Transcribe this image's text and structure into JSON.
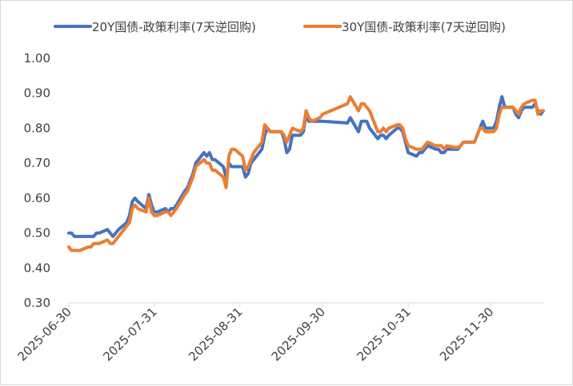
{
  "chart_data": {
    "type": "line",
    "title": "",
    "xlabel": "",
    "ylabel": "",
    "ylim": [
      0.3,
      1.0
    ],
    "yticks": [
      "0.30",
      "0.40",
      "0.50",
      "0.60",
      "0.70",
      "0.80",
      "0.90",
      "1.00"
    ],
    "xticks": [
      "2025-06-30",
      "2025-07-31",
      "2025-08-31",
      "2025-09-30",
      "2025-10-31",
      "2025-11-30"
    ],
    "x_range": [
      "2025-06-30",
      "2025-12-19"
    ],
    "legend_position": "top",
    "grid": false,
    "series": [
      {
        "name": "20Y国债-政策利率(7天逆回购)",
        "color": "#4472C4",
        "points": [
          [
            "2025-06-30",
            0.5
          ],
          [
            "2025-07-01",
            0.5
          ],
          [
            "2025-07-02",
            0.49
          ],
          [
            "2025-07-03",
            0.49
          ],
          [
            "2025-07-04",
            0.49
          ],
          [
            "2025-07-07",
            0.49
          ],
          [
            "2025-07-08",
            0.49
          ],
          [
            "2025-07-09",
            0.49
          ],
          [
            "2025-07-10",
            0.5
          ],
          [
            "2025-07-11",
            0.5
          ],
          [
            "2025-07-14",
            0.51
          ],
          [
            "2025-07-15",
            0.5
          ],
          [
            "2025-07-16",
            0.49
          ],
          [
            "2025-07-17",
            0.5
          ],
          [
            "2025-07-18",
            0.51
          ],
          [
            "2025-07-21",
            0.53
          ],
          [
            "2025-07-22",
            0.55
          ],
          [
            "2025-07-23",
            0.59
          ],
          [
            "2025-07-24",
            0.6
          ],
          [
            "2025-07-25",
            0.59
          ],
          [
            "2025-07-28",
            0.57
          ],
          [
            "2025-07-29",
            0.61
          ],
          [
            "2025-07-30",
            0.58
          ],
          [
            "2025-07-31",
            0.56
          ],
          [
            "2025-08-01",
            0.56
          ],
          [
            "2025-08-04",
            0.57
          ],
          [
            "2025-08-05",
            0.56
          ],
          [
            "2025-08-06",
            0.57
          ],
          [
            "2025-08-07",
            0.57
          ],
          [
            "2025-08-08",
            0.58
          ],
          [
            "2025-08-11",
            0.62
          ],
          [
            "2025-08-12",
            0.63
          ],
          [
            "2025-08-13",
            0.65
          ],
          [
            "2025-08-14",
            0.67
          ],
          [
            "2025-08-15",
            0.7
          ],
          [
            "2025-08-18",
            0.73
          ],
          [
            "2025-08-19",
            0.72
          ],
          [
            "2025-08-20",
            0.73
          ],
          [
            "2025-08-21",
            0.71
          ],
          [
            "2025-08-22",
            0.71
          ],
          [
            "2025-08-25",
            0.69
          ],
          [
            "2025-08-26",
            0.66
          ],
          [
            "2025-08-27",
            0.7
          ],
          [
            "2025-08-28",
            0.69
          ],
          [
            "2025-08-29",
            0.69
          ],
          [
            "2025-09-01",
            0.69
          ],
          [
            "2025-09-02",
            0.66
          ],
          [
            "2025-09-03",
            0.67
          ],
          [
            "2025-09-04",
            0.7
          ],
          [
            "2025-09-05",
            0.71
          ],
          [
            "2025-09-08",
            0.74
          ],
          [
            "2025-09-09",
            0.78
          ],
          [
            "2025-09-10",
            0.8
          ],
          [
            "2025-09-11",
            0.79
          ],
          [
            "2025-09-12",
            0.79
          ],
          [
            "2025-09-15",
            0.79
          ],
          [
            "2025-09-16",
            0.77
          ],
          [
            "2025-09-17",
            0.73
          ],
          [
            "2025-09-18",
            0.74
          ],
          [
            "2025-09-19",
            0.78
          ],
          [
            "2025-09-22",
            0.78
          ],
          [
            "2025-09-23",
            0.79
          ],
          [
            "2025-09-24",
            0.84
          ],
          [
            "2025-09-25",
            0.82
          ],
          [
            "2025-09-26",
            0.82
          ],
          [
            "2025-09-29",
            0.82
          ],
          [
            "2025-09-30",
            0.82
          ],
          [
            "2025-10-09",
            0.815
          ],
          [
            "2025-10-10",
            0.83
          ],
          [
            "2025-10-13",
            0.79
          ],
          [
            "2025-10-14",
            0.82
          ],
          [
            "2025-10-15",
            0.82
          ],
          [
            "2025-10-16",
            0.82
          ],
          [
            "2025-10-17",
            0.8
          ],
          [
            "2025-10-20",
            0.77
          ],
          [
            "2025-10-21",
            0.78
          ],
          [
            "2025-10-22",
            0.78
          ],
          [
            "2025-10-23",
            0.77
          ],
          [
            "2025-10-24",
            0.78
          ],
          [
            "2025-10-27",
            0.8
          ],
          [
            "2025-10-28",
            0.8
          ],
          [
            "2025-10-29",
            0.79
          ],
          [
            "2025-10-30",
            0.76
          ],
          [
            "2025-10-31",
            0.73
          ],
          [
            "2025-11-03",
            0.72
          ],
          [
            "2025-11-04",
            0.73
          ],
          [
            "2025-11-05",
            0.73
          ],
          [
            "2025-11-06",
            0.74
          ],
          [
            "2025-11-07",
            0.75
          ],
          [
            "2025-11-10",
            0.74
          ],
          [
            "2025-11-11",
            0.74
          ],
          [
            "2025-11-12",
            0.73
          ],
          [
            "2025-11-13",
            0.73
          ],
          [
            "2025-11-14",
            0.74
          ],
          [
            "2025-11-17",
            0.74
          ],
          [
            "2025-11-18",
            0.74
          ],
          [
            "2025-11-19",
            0.75
          ],
          [
            "2025-11-20",
            0.76
          ],
          [
            "2025-11-21",
            0.76
          ],
          [
            "2025-11-24",
            0.76
          ],
          [
            "2025-11-25",
            0.78
          ],
          [
            "2025-11-26",
            0.8
          ],
          [
            "2025-11-27",
            0.82
          ],
          [
            "2025-11-28",
            0.8
          ],
          [
            "2025-12-01",
            0.8
          ],
          [
            "2025-12-02",
            0.82
          ],
          [
            "2025-12-03",
            0.86
          ],
          [
            "2025-12-04",
            0.89
          ],
          [
            "2025-12-05",
            0.86
          ],
          [
            "2025-12-08",
            0.86
          ],
          [
            "2025-12-09",
            0.84
          ],
          [
            "2025-12-10",
            0.83
          ],
          [
            "2025-12-11",
            0.85
          ],
          [
            "2025-12-12",
            0.86
          ],
          [
            "2025-12-15",
            0.86
          ],
          [
            "2025-12-16",
            0.87
          ],
          [
            "2025-12-17",
            0.85
          ],
          [
            "2025-12-18",
            0.84
          ],
          [
            "2025-12-19",
            0.85
          ]
        ]
      },
      {
        "name": "30Y国债-政策利率(7天逆回购)",
        "color": "#ED7D31",
        "points": [
          [
            "2025-06-30",
            0.46
          ],
          [
            "2025-07-01",
            0.45
          ],
          [
            "2025-07-02",
            0.45
          ],
          [
            "2025-07-03",
            0.45
          ],
          [
            "2025-07-04",
            0.45
          ],
          [
            "2025-07-07",
            0.46
          ],
          [
            "2025-07-08",
            0.46
          ],
          [
            "2025-07-09",
            0.47
          ],
          [
            "2025-07-10",
            0.47
          ],
          [
            "2025-07-11",
            0.47
          ],
          [
            "2025-07-14",
            0.48
          ],
          [
            "2025-07-15",
            0.47
          ],
          [
            "2025-07-16",
            0.47
          ],
          [
            "2025-07-17",
            0.48
          ],
          [
            "2025-07-18",
            0.49
          ],
          [
            "2025-07-21",
            0.52
          ],
          [
            "2025-07-22",
            0.53
          ],
          [
            "2025-07-23",
            0.57
          ],
          [
            "2025-07-24",
            0.58
          ],
          [
            "2025-07-25",
            0.57
          ],
          [
            "2025-07-28",
            0.56
          ],
          [
            "2025-07-29",
            0.6
          ],
          [
            "2025-07-30",
            0.56
          ],
          [
            "2025-07-31",
            0.55
          ],
          [
            "2025-08-01",
            0.55
          ],
          [
            "2025-08-04",
            0.56
          ],
          [
            "2025-08-05",
            0.56
          ],
          [
            "2025-08-06",
            0.55
          ],
          [
            "2025-08-07",
            0.56
          ],
          [
            "2025-08-08",
            0.57
          ],
          [
            "2025-08-11",
            0.61
          ],
          [
            "2025-08-12",
            0.62
          ],
          [
            "2025-08-13",
            0.64
          ],
          [
            "2025-08-14",
            0.66
          ],
          [
            "2025-08-15",
            0.69
          ],
          [
            "2025-08-18",
            0.71
          ],
          [
            "2025-08-19",
            0.7
          ],
          [
            "2025-08-20",
            0.7
          ],
          [
            "2025-08-21",
            0.68
          ],
          [
            "2025-08-22",
            0.68
          ],
          [
            "2025-08-25",
            0.66
          ],
          [
            "2025-08-26",
            0.63
          ],
          [
            "2025-08-27",
            0.72
          ],
          [
            "2025-08-28",
            0.74
          ],
          [
            "2025-08-29",
            0.74
          ],
          [
            "2025-09-01",
            0.72
          ],
          [
            "2025-09-02",
            0.68
          ],
          [
            "2025-09-03",
            0.69
          ],
          [
            "2025-09-04",
            0.71
          ],
          [
            "2025-09-05",
            0.73
          ],
          [
            "2025-09-08",
            0.76
          ],
          [
            "2025-09-09",
            0.81
          ],
          [
            "2025-09-10",
            0.8
          ],
          [
            "2025-09-11",
            0.79
          ],
          [
            "2025-09-12",
            0.79
          ],
          [
            "2025-09-15",
            0.79
          ],
          [
            "2025-09-16",
            0.78
          ],
          [
            "2025-09-17",
            0.76
          ],
          [
            "2025-09-18",
            0.78
          ],
          [
            "2025-09-19",
            0.8
          ],
          [
            "2025-09-22",
            0.79
          ],
          [
            "2025-09-23",
            0.8
          ],
          [
            "2025-09-24",
            0.85
          ],
          [
            "2025-09-25",
            0.83
          ],
          [
            "2025-09-26",
            0.82
          ],
          [
            "2025-09-29",
            0.83
          ],
          [
            "2025-09-30",
            0.84
          ],
          [
            "2025-10-09",
            0.87
          ],
          [
            "2025-10-10",
            0.89
          ],
          [
            "2025-10-13",
            0.85
          ],
          [
            "2025-10-14",
            0.87
          ],
          [
            "2025-10-15",
            0.87
          ],
          [
            "2025-10-16",
            0.86
          ],
          [
            "2025-10-17",
            0.85
          ],
          [
            "2025-10-20",
            0.79
          ],
          [
            "2025-10-21",
            0.79
          ],
          [
            "2025-10-22",
            0.8
          ],
          [
            "2025-10-23",
            0.79
          ],
          [
            "2025-10-24",
            0.8
          ],
          [
            "2025-10-27",
            0.81
          ],
          [
            "2025-10-28",
            0.81
          ],
          [
            "2025-10-29",
            0.8
          ],
          [
            "2025-10-30",
            0.77
          ],
          [
            "2025-10-31",
            0.75
          ],
          [
            "2025-11-03",
            0.74
          ],
          [
            "2025-11-04",
            0.74
          ],
          [
            "2025-11-05",
            0.74
          ],
          [
            "2025-11-06",
            0.75
          ],
          [
            "2025-11-07",
            0.76
          ],
          [
            "2025-11-10",
            0.75
          ],
          [
            "2025-11-11",
            0.75
          ],
          [
            "2025-11-12",
            0.75
          ],
          [
            "2025-11-13",
            0.74
          ],
          [
            "2025-11-14",
            0.75
          ],
          [
            "2025-11-17",
            0.745
          ],
          [
            "2025-11-18",
            0.745
          ],
          [
            "2025-11-19",
            0.75
          ],
          [
            "2025-11-20",
            0.76
          ],
          [
            "2025-11-21",
            0.76
          ],
          [
            "2025-11-24",
            0.76
          ],
          [
            "2025-11-25",
            0.78
          ],
          [
            "2025-11-26",
            0.8
          ],
          [
            "2025-11-27",
            0.8
          ],
          [
            "2025-11-28",
            0.79
          ],
          [
            "2025-12-01",
            0.79
          ],
          [
            "2025-12-02",
            0.8
          ],
          [
            "2025-12-03",
            0.84
          ],
          [
            "2025-12-04",
            0.86
          ],
          [
            "2025-12-05",
            0.86
          ],
          [
            "2025-12-08",
            0.86
          ],
          [
            "2025-12-09",
            0.85
          ],
          [
            "2025-12-10",
            0.84
          ],
          [
            "2025-12-11",
            0.86
          ],
          [
            "2025-12-12",
            0.87
          ],
          [
            "2025-12-15",
            0.88
          ],
          [
            "2025-12-16",
            0.88
          ],
          [
            "2025-12-17",
            0.84
          ],
          [
            "2025-12-18",
            0.85
          ],
          [
            "2025-12-19",
            0.85
          ]
        ]
      }
    ]
  }
}
